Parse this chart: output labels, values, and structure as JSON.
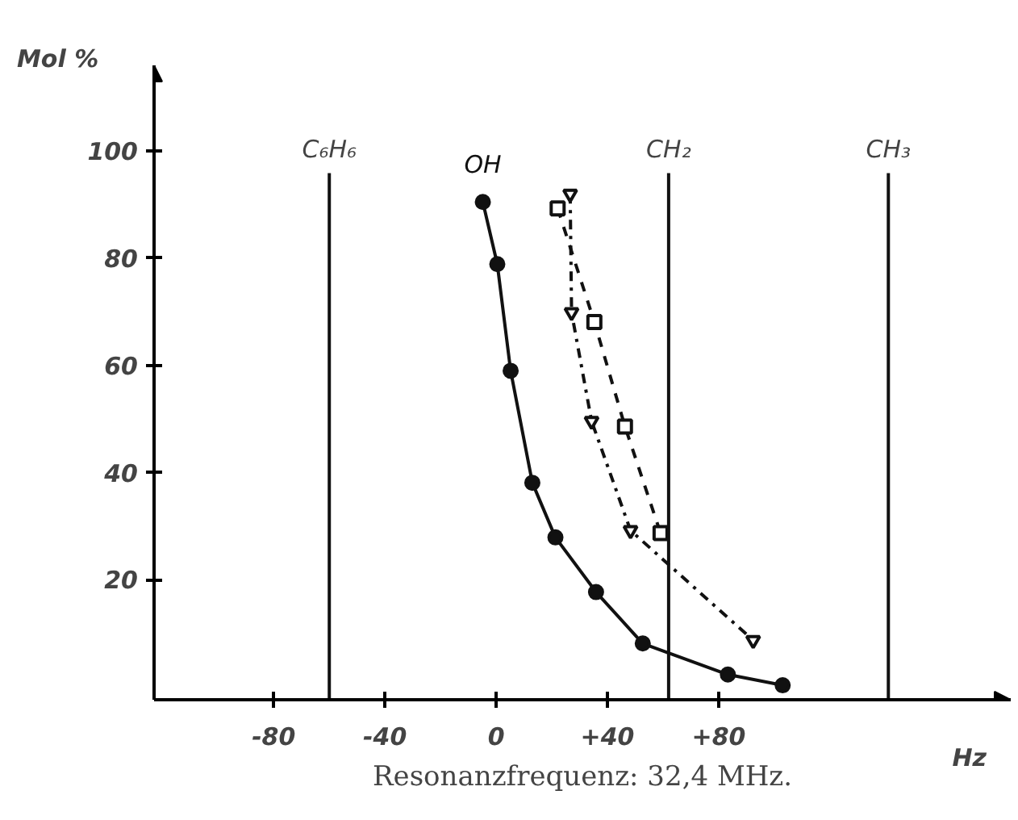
{
  "chart_data": {
    "type": "line",
    "xlabel": "Hz",
    "ylabel": "Mol %",
    "xlim": [
      -123,
      185
    ],
    "ylim": [
      -2.4,
      116
    ],
    "xticks": [
      -80,
      -40,
      0,
      {
        "value": 40,
        "label": "+40"
      },
      {
        "value": 80,
        "label": "+80"
      }
    ],
    "yticks": [
      20,
      40,
      60,
      80,
      100
    ],
    "grid": false,
    "series": [
      {
        "name": "OH",
        "color": "#111111",
        "marker": "circle",
        "line_style": "solid",
        "x": [
          -4.8,
          0.4,
          5.2,
          13,
          21.3,
          35.9,
          52.7,
          83.3,
          103
        ],
        "values": [
          90.5,
          78.9,
          59,
          38.1,
          27.9,
          17.7,
          8.1,
          2.3,
          0.3
        ]
      },
      {
        "color": "#111111",
        "marker": "square",
        "line_style": "dashed",
        "x": [
          22.1,
          35.3,
          46.3,
          59.1
        ],
        "values": [
          89.3,
          68.1,
          48.6,
          28.7
        ]
      },
      {
        "color": "#111111",
        "marker": "none",
        "line_style": "dashdot",
        "x": [
          26.6,
          27.1,
          34.3,
          48.3,
          92.4
        ],
        "values": [
          92,
          69.9,
          49.6,
          29.2,
          8.7
        ]
      },
      {
        "type": "scatter",
        "color": "#111111",
        "marker": "triangle",
        "x": [
          26.6,
          48.3,
          92.4
        ],
        "values": [
          92,
          29.2,
          8.7
        ]
      },
      {
        "type": "scatter",
        "color": "#111111",
        "marker": "triangle",
        "x": [
          27.1,
          34.3
        ],
        "values": [
          69.9,
          49.6
        ]
      }
    ],
    "ref_lines": [
      {
        "axis": "x",
        "value": -60,
        "label": "C₆H₆"
      },
      {
        "axis": "x",
        "value": 62,
        "label": "CH₂"
      },
      {
        "axis": "x",
        "value": 141,
        "label": "CH₃"
      }
    ],
    "annotations": [
      "Resonanzfrequenz: 32,4 MHz."
    ]
  }
}
